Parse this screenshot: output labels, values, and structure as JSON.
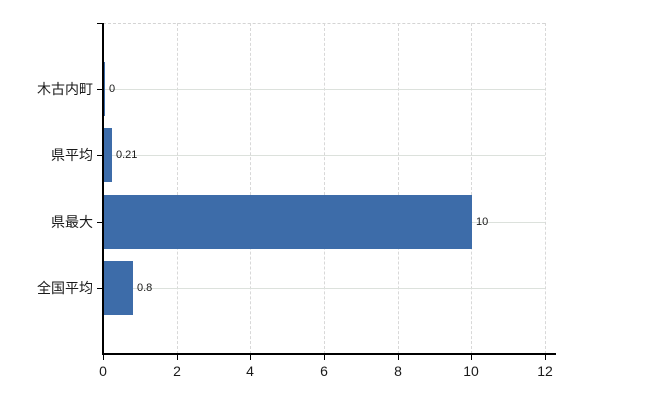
{
  "page": {
    "background": "#ffffff"
  },
  "chart_data": {
    "type": "bar",
    "orientation": "horizontal",
    "title": "",
    "categories": [
      "木古内町",
      "県平均",
      "県最大",
      "全国平均"
    ],
    "values": [
      0,
      0.21,
      10,
      0.8
    ],
    "value_labels": [
      "0",
      "0.21",
      "10",
      "0.8"
    ],
    "x_ticks": [
      0,
      2,
      4,
      6,
      8,
      10,
      12
    ],
    "x_tick_labels": [
      "0",
      "2",
      "4",
      "6",
      "8",
      "10",
      "12"
    ],
    "xlim": [
      0,
      12
    ],
    "grid": true,
    "legend": "none",
    "colors": {
      "bar": "#3d6ca9",
      "axis": "#000000",
      "grid_horizontal": "#dce1dc",
      "grid_vertical": "#d8d8d8",
      "text": "#1a1a1a"
    }
  }
}
